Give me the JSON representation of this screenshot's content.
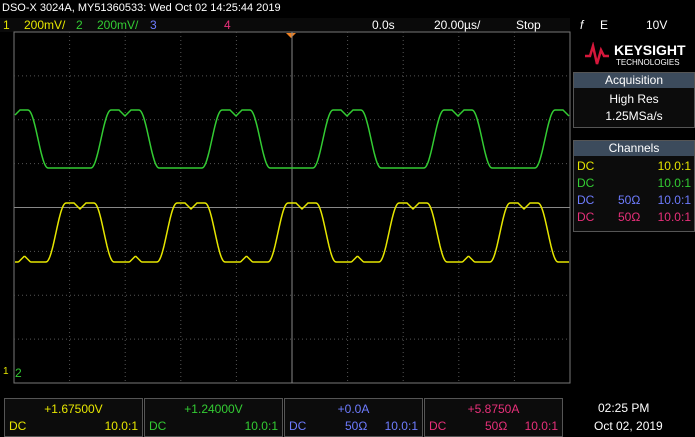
{
  "header": {
    "title": "DSO-X 3024A, MY51360533: Wed Oct 02 14:25:44 2019"
  },
  "status_bar": {
    "channels": [
      {
        "number": "1",
        "scale": "200mV/"
      },
      {
        "number": "2",
        "scale": "200mV/"
      },
      {
        "number": "3"
      },
      {
        "number": "4"
      }
    ],
    "time_position": "0.0s",
    "time_scale": "20.00µs/",
    "run_state": "Stop",
    "trigger_slope": "f",
    "trigger_source": "E",
    "trigger_level": "10V"
  },
  "side_panel": {
    "brand": "KEYSIGHT",
    "brand_sub": "TECHNOLOGIES",
    "acquisition": {
      "title": "Acquisition",
      "mode": "High Res",
      "rate": "1.25MSa/s"
    },
    "channels": {
      "title": "Channels",
      "rows": [
        [
          "DC",
          "",
          "10.0:1"
        ],
        [
          "DC",
          "",
          "10.0:1"
        ],
        [
          "DC",
          "50Ω",
          "10.0:1"
        ],
        [
          "DC",
          "50Ω",
          "10.0:1"
        ]
      ]
    }
  },
  "bottom_bar": {
    "channels": [
      {
        "offset": "+1.67500V",
        "coupling": "DC",
        "impedance": "",
        "probe": "10.0:1"
      },
      {
        "offset": "+1.24000V",
        "coupling": "DC",
        "impedance": "",
        "probe": "10.0:1"
      },
      {
        "offset": "+0.0A",
        "coupling": "DC",
        "impedance": "50Ω",
        "probe": "10.0:1"
      },
      {
        "offset": "+5.8750A",
        "coupling": "DC",
        "impedance": "50Ω",
        "probe": "10.0:1"
      }
    ],
    "time": "02:25 PM",
    "date": "Oct 02, 2019"
  }
}
